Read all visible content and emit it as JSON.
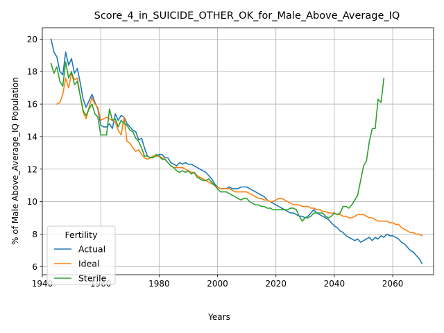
{
  "chart_data": {
    "type": "line",
    "title": "Score_4_in_SUICIDE_OTHER_OK_for_Male_Above_Average_IQ",
    "xlabel": "Years",
    "ylabel": "% of Male Above_Average_IQ Population",
    "xlim": [
      1940,
      2074
    ],
    "ylim": [
      5.5,
      20.7
    ],
    "xticks": [
      1940,
      1960,
      1980,
      2000,
      2020,
      2040,
      2060
    ],
    "yticks": [
      6,
      8,
      10,
      12,
      14,
      16,
      18,
      20
    ],
    "grid": true,
    "legend": {
      "title": "Fertility",
      "position": "lower-left"
    },
    "series": [
      {
        "name": "Actual",
        "color": "#1f77b4",
        "x": [
          1943,
          1944,
          1945,
          1946,
          1947,
          1948,
          1949,
          1950,
          1951,
          1952,
          1953,
          1954,
          1955,
          1956,
          1957,
          1958,
          1959,
          1960,
          1961,
          1962,
          1963,
          1964,
          1965,
          1966,
          1967,
          1968,
          1969,
          1970,
          1971,
          1972,
          1973,
          1974,
          1975,
          1976,
          1977,
          1978,
          1979,
          1980,
          1981,
          1982,
          1983,
          1984,
          1985,
          1986,
          1987,
          1988,
          1989,
          1990,
          1991,
          1992,
          1993,
          1994,
          1995,
          1996,
          1997,
          1998,
          1999,
          2000,
          2001,
          2002,
          2003,
          2004,
          2005,
          2006,
          2007,
          2008,
          2009,
          2010,
          2011,
          2012,
          2013,
          2014,
          2015,
          2016,
          2017,
          2018,
          2019,
          2020,
          2021,
          2022,
          2023,
          2024,
          2025,
          2026,
          2027,
          2028,
          2029,
          2030,
          2031,
          2032,
          2033,
          2034,
          2035,
          2036,
          2037,
          2038,
          2039,
          2040,
          2041,
          2042,
          2043,
          2044,
          2045,
          2046,
          2047,
          2048,
          2049,
          2050,
          2051,
          2052,
          2053,
          2054,
          2055,
          2056,
          2057,
          2058,
          2059,
          2060,
          2061,
          2062,
          2063,
          2064,
          2065,
          2066,
          2067,
          2068,
          2069,
          2070
        ],
        "y": [
          20.0,
          19.2,
          18.9,
          18.0,
          17.8,
          19.2,
          18.4,
          18.8,
          17.9,
          18.2,
          17.3,
          16.3,
          15.8,
          16.2,
          16.6,
          16.1,
          15.7,
          14.7,
          14.6,
          14.6,
          14.8,
          14.5,
          15.4,
          15.0,
          15.3,
          15.2,
          14.8,
          14.6,
          14.4,
          14.3,
          13.8,
          13.9,
          13.3,
          12.8,
          12.7,
          12.8,
          12.8,
          12.9,
          12.9,
          12.7,
          12.7,
          12.4,
          12.3,
          12.2,
          12.4,
          12.3,
          12.4,
          12.3,
          12.3,
          12.2,
          12.1,
          12.0,
          11.9,
          11.8,
          11.6,
          11.4,
          11.1,
          10.9,
          10.8,
          10.8,
          10.8,
          10.9,
          10.8,
          10.8,
          10.8,
          10.9,
          10.9,
          10.9,
          10.8,
          10.7,
          10.6,
          10.5,
          10.4,
          10.3,
          10.1,
          10.0,
          9.9,
          9.8,
          9.7,
          9.6,
          9.5,
          9.4,
          9.3,
          9.3,
          9.2,
          9.1,
          9.1,
          9.0,
          9.1,
          9.3,
          9.5,
          9.3,
          9.2,
          9.1,
          9.0,
          8.9,
          8.7,
          8.5,
          8.4,
          8.2,
          8.1,
          7.9,
          7.8,
          7.7,
          7.6,
          7.7,
          7.5,
          7.6,
          7.7,
          7.8,
          7.6,
          7.8,
          7.7,
          7.9,
          7.8,
          8.0,
          7.9,
          7.9,
          7.8,
          7.7,
          7.5,
          7.4,
          7.2,
          7.0,
          6.9,
          6.7,
          6.5,
          6.2
        ]
      },
      {
        "name": "Ideal",
        "color": "#ff7f0e",
        "x": [
          1945,
          1946,
          1947,
          1948,
          1949,
          1950,
          1951,
          1952,
          1953,
          1954,
          1955,
          1956,
          1957,
          1958,
          1959,
          1960,
          1961,
          1962,
          1963,
          1964,
          1965,
          1966,
          1967,
          1968,
          1969,
          1970,
          1971,
          1972,
          1973,
          1974,
          1975,
          1976,
          1977,
          1978,
          1979,
          1980,
          1981,
          1982,
          1983,
          1984,
          1985,
          1986,
          1987,
          1988,
          1989,
          1990,
          1991,
          1992,
          1993,
          1994,
          1995,
          1996,
          1997,
          1998,
          1999,
          2000,
          2001,
          2002,
          2003,
          2004,
          2005,
          2006,
          2007,
          2008,
          2009,
          2010,
          2011,
          2012,
          2013,
          2014,
          2015,
          2016,
          2017,
          2018,
          2019,
          2020,
          2021,
          2022,
          2023,
          2024,
          2025,
          2026,
          2027,
          2028,
          2029,
          2030,
          2031,
          2032,
          2033,
          2034,
          2035,
          2036,
          2037,
          2038,
          2039,
          2040,
          2041,
          2042,
          2043,
          2044,
          2045,
          2046,
          2047,
          2048,
          2049,
          2050,
          2051,
          2052,
          2053,
          2054,
          2055,
          2056,
          2057,
          2058,
          2059,
          2060,
          2061,
          2062,
          2063,
          2064,
          2065,
          2066,
          2067,
          2068,
          2069,
          2070
        ],
        "y": [
          16.0,
          16.1,
          16.6,
          17.6,
          17.0,
          17.9,
          17.5,
          17.6,
          16.5,
          15.5,
          15.1,
          15.8,
          16.4,
          16.0,
          15.8,
          15.0,
          15.1,
          15.2,
          15.1,
          15.0,
          14.9,
          14.4,
          14.1,
          15.2,
          13.7,
          13.6,
          13.3,
          13.1,
          13.2,
          12.9,
          12.7,
          12.6,
          12.7,
          12.8,
          12.8,
          12.8,
          12.7,
          12.6,
          12.4,
          12.2,
          12.1,
          12.1,
          12.1,
          12.1,
          12.0,
          11.9,
          11.8,
          11.8,
          11.6,
          11.5,
          11.4,
          11.3,
          11.2,
          11.1,
          11.0,
          10.9,
          10.8,
          10.8,
          10.8,
          10.8,
          10.7,
          10.6,
          10.6,
          10.6,
          10.6,
          10.6,
          10.5,
          10.4,
          10.3,
          10.2,
          10.2,
          10.1,
          10.1,
          10.0,
          10.0,
          10.1,
          10.2,
          10.2,
          10.1,
          10.0,
          9.9,
          9.8,
          9.8,
          9.8,
          9.7,
          9.7,
          9.7,
          9.6,
          9.6,
          9.5,
          9.5,
          9.4,
          9.4,
          9.3,
          9.3,
          9.3,
          9.2,
          9.2,
          9.1,
          9.1,
          9.0,
          9.0,
          9.1,
          9.2,
          9.2,
          9.2,
          9.1,
          9.0,
          9.0,
          8.9,
          8.8,
          8.8,
          8.8,
          8.8,
          8.7,
          8.7,
          8.6,
          8.6,
          8.4,
          8.3,
          8.2,
          8.1,
          8.1,
          8.0,
          8.0,
          7.9
        ]
      },
      {
        "name": "Sterile",
        "color": "#2ca02c",
        "x": [
          1943,
          1944,
          1945,
          1946,
          1947,
          1948,
          1949,
          1950,
          1951,
          1952,
          1953,
          1954,
          1955,
          1956,
          1957,
          1958,
          1959,
          1960,
          1961,
          1962,
          1963,
          1964,
          1965,
          1966,
          1967,
          1968,
          1969,
          1970,
          1971,
          1972,
          1973,
          1974,
          1975,
          1976,
          1977,
          1978,
          1979,
          1980,
          1981,
          1982,
          1983,
          1984,
          1985,
          1986,
          1987,
          1988,
          1989,
          1990,
          1991,
          1992,
          1993,
          1994,
          1995,
          1996,
          1997,
          1998,
          1999,
          2000,
          2001,
          2002,
          2003,
          2004,
          2005,
          2006,
          2007,
          2008,
          2009,
          2010,
          2011,
          2012,
          2013,
          2014,
          2015,
          2016,
          2017,
          2018,
          2019,
          2020,
          2021,
          2022,
          2023,
          2024,
          2025,
          2026,
          2027,
          2028,
          2029,
          2030,
          2031,
          2032,
          2033,
          2034,
          2035,
          2036,
          2037,
          2038,
          2039,
          2040,
          2041,
          2042,
          2043,
          2044,
          2045,
          2046,
          2047,
          2048,
          2049,
          2050,
          2051,
          2052,
          2053,
          2054,
          2055,
          2056,
          2057
        ],
        "y": [
          18.5,
          17.9,
          18.3,
          17.4,
          17.1,
          18.6,
          17.6,
          18.0,
          17.2,
          17.4,
          16.5,
          15.6,
          15.3,
          15.7,
          16.0,
          15.4,
          15.2,
          14.1,
          14.1,
          14.1,
          15.7,
          15.0,
          15.1,
          14.6,
          15.0,
          14.8,
          14.7,
          14.4,
          14.3,
          13.9,
          13.7,
          13.3,
          12.8,
          12.8,
          12.7,
          12.7,
          12.9,
          12.8,
          12.6,
          12.6,
          12.4,
          12.2,
          12.1,
          11.9,
          11.8,
          11.9,
          11.8,
          11.9,
          11.7,
          11.8,
          11.5,
          11.4,
          11.3,
          11.3,
          11.4,
          11.2,
          11.0,
          10.8,
          10.6,
          10.6,
          10.6,
          10.5,
          10.4,
          10.3,
          10.2,
          10.1,
          10.2,
          10.2,
          10.0,
          9.9,
          9.8,
          9.8,
          9.7,
          9.7,
          9.6,
          9.6,
          9.5,
          9.5,
          9.5,
          9.5,
          9.5,
          9.5,
          9.6,
          9.6,
          9.5,
          9.1,
          8.8,
          9.0,
          9.0,
          9.1,
          9.3,
          9.3,
          9.3,
          9.3,
          9.1,
          9.0,
          9.1,
          9.3,
          9.2,
          9.3,
          9.7,
          9.7,
          9.6,
          9.8,
          10.1,
          10.4,
          11.3,
          12.2,
          12.5,
          13.7,
          14.5,
          14.5,
          16.3,
          16.1,
          17.6
        ]
      }
    ]
  }
}
